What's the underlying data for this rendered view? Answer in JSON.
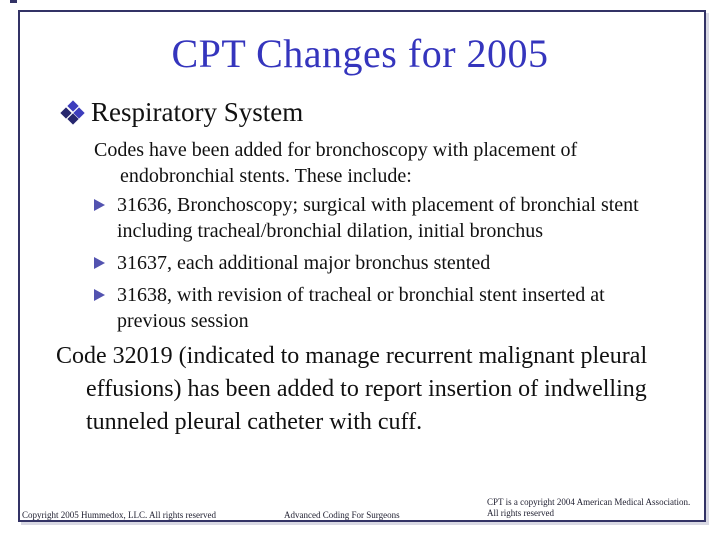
{
  "slide": {
    "title": "CPT Changes for 2005",
    "section": {
      "bullet_icon": "four-diamonds-icon",
      "label": "Respiratory System"
    },
    "intro": "Codes have been added for bronchoscopy with placement of endobronchial stents. These include:",
    "code_bullets": [
      {
        "icon": "right-arrowhead-icon",
        "text": "31636, Bronchoscopy; surgical with placement of bronchial stent including tracheal/bronchial dilation, initial bronchus"
      },
      {
        "icon": "right-arrowhead-icon",
        "text": "31637, each additional major bronchus stented"
      },
      {
        "icon": "right-arrowhead-icon",
        "text": "31638, with revision of tracheal or bronchial stent inserted at previous session"
      }
    ],
    "closing_paragraph": "Code 32019 (indicated to manage recurrent malignant pleural effusions) has been added to report insertion of indwelling tunneled pleural catheter with cuff.",
    "footer": {
      "left": "Copyright 2005 Hummedox, LLC. All rights reserved",
      "center": "Advanced Coding For Surgeons",
      "right_line1": "CPT is a copyright 2004 American Medical Association.",
      "right_line2": "All rights reserved"
    },
    "colors": {
      "title_text": "#3535bd",
      "frame_border": "#333366",
      "body_text": "#111111",
      "diamond_bullet_dark": "#26266e",
      "diamond_bullet_light": "#3d3dbd",
      "arrow_bullet": "#5353b0",
      "footer_text": "#222233"
    }
  }
}
